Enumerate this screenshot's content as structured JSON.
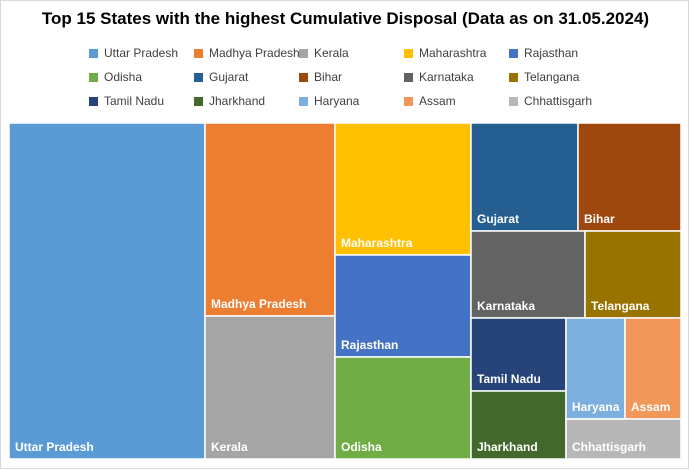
{
  "chart_data": {
    "type": "treemap",
    "title": "Top 15 States with the highest Cumulative Disposal (Data as on 31.05.2024)",
    "legend_position": "top",
    "categories": [
      "Uttar Pradesh",
      "Madhya Pradesh",
      "Kerala",
      "Maharashtra",
      "Rajasthan",
      "Odisha",
      "Gujarat",
      "Bihar",
      "Karnataka",
      "Telangana",
      "Tamil Nadu",
      "Jharkhand",
      "Haryana",
      "Assam",
      "Chhattisgarh"
    ],
    "colors": [
      "#5b9bd5",
      "#ed7d31",
      "#a5a5a5",
      "#ffc000",
      "#4472c4",
      "#70ad47",
      "#255e91",
      "#9e480e",
      "#636363",
      "#997300",
      "#264478",
      "#43682b",
      "#7cafdd",
      "#f1975a",
      "#b7b7b7"
    ]
  }
}
